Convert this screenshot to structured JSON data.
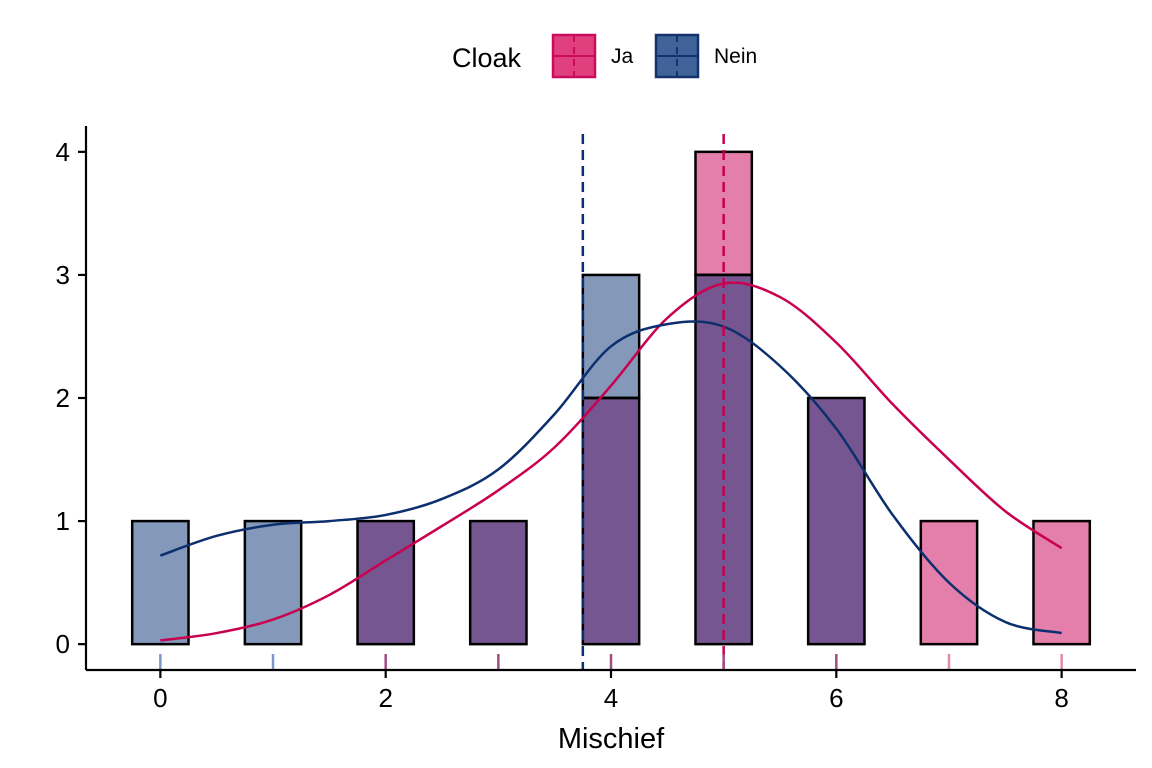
{
  "chart_data": {
    "type": "bar",
    "xlabel": "Mischief",
    "ylabel": "",
    "xlim": [
      -0.66,
      8.66
    ],
    "ylim": [
      -0.21,
      4.21
    ],
    "x_ticks": [
      0,
      2,
      4,
      6,
      8
    ],
    "y_ticks": [
      0,
      1,
      2,
      3,
      4
    ],
    "bin_width": 0.5,
    "grid": false,
    "legend": {
      "title": "Cloak",
      "position": "top",
      "entries": [
        {
          "label": "Ja",
          "color": "#cc0a5e",
          "fill": "#e0417e"
        },
        {
          "label": "Nein",
          "color": "#14336e",
          "fill": "#40639a"
        }
      ]
    },
    "colors": {
      "ja_fill": "#cc0a5e",
      "nein_fill": "#143a7a",
      "overlap_fill": "#765690",
      "ja_line": "#c8004f",
      "nein_line": "#0c2f6e"
    },
    "series": [
      {
        "name": "Ja",
        "x": [
          2,
          3,
          4,
          5,
          6,
          7,
          8
        ],
        "values": [
          1,
          1,
          2,
          4,
          2,
          1,
          1
        ]
      },
      {
        "name": "Nein",
        "x": [
          0,
          1,
          2,
          3,
          4,
          5,
          6
        ],
        "values": [
          1,
          1,
          1,
          1,
          3,
          3,
          2
        ]
      }
    ],
    "mean_lines": [
      {
        "series": "Ja",
        "x": 5.0
      },
      {
        "series": "Nein",
        "x": 3.75
      }
    ],
    "density_curves": [
      {
        "series": "Ja",
        "points": [
          [
            0,
            0.03
          ],
          [
            0.5,
            0.09
          ],
          [
            1,
            0.2
          ],
          [
            1.5,
            0.4
          ],
          [
            2,
            0.68
          ],
          [
            2.5,
            0.96
          ],
          [
            3,
            1.25
          ],
          [
            3.5,
            1.6
          ],
          [
            4,
            2.1
          ],
          [
            4.5,
            2.65
          ],
          [
            5,
            2.93
          ],
          [
            5.5,
            2.82
          ],
          [
            6,
            2.45
          ],
          [
            6.5,
            1.95
          ],
          [
            7,
            1.5
          ],
          [
            7.5,
            1.08
          ],
          [
            8,
            0.78
          ]
        ]
      },
      {
        "series": "Nein",
        "points": [
          [
            0,
            0.72
          ],
          [
            0.5,
            0.88
          ],
          [
            1,
            0.97
          ],
          [
            1.5,
            1.0
          ],
          [
            2,
            1.05
          ],
          [
            2.5,
            1.18
          ],
          [
            3,
            1.42
          ],
          [
            3.5,
            1.87
          ],
          [
            4,
            2.42
          ],
          [
            4.5,
            2.6
          ],
          [
            5,
            2.58
          ],
          [
            5.5,
            2.26
          ],
          [
            6,
            1.75
          ],
          [
            6.5,
            1.05
          ],
          [
            7,
            0.5
          ],
          [
            7.5,
            0.18
          ],
          [
            8,
            0.09
          ]
        ]
      }
    ],
    "rug": [
      {
        "x": 0,
        "series": "Nein"
      },
      {
        "x": 1,
        "series": "Nein"
      },
      {
        "x": 2,
        "series": "both"
      },
      {
        "x": 3,
        "series": "both"
      },
      {
        "x": 4,
        "series": "both"
      },
      {
        "x": 5,
        "series": "both"
      },
      {
        "x": 6,
        "series": "both"
      },
      {
        "x": 7,
        "series": "Ja"
      },
      {
        "x": 8,
        "series": "Ja"
      }
    ]
  }
}
